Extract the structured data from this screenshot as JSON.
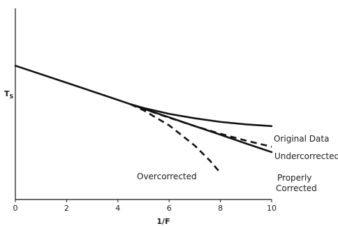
{
  "chart_data": {
    "type": "line",
    "title": "",
    "xlabel": "1/F",
    "ylabel_main": "T",
    "ylabel_sub": "S",
    "xlim": [
      0,
      10
    ],
    "ylim": [
      0,
      10
    ],
    "xticks": [
      "0",
      "2",
      "4",
      "6",
      "8",
      "10"
    ],
    "grid": false,
    "legend": "none",
    "series": [
      {
        "name": "Original Data",
        "style": "solid",
        "x": [
          0,
          2,
          4,
          4.5,
          5,
          6,
          7,
          8,
          9,
          10
        ],
        "y": [
          7.0,
          6.11,
          5.21,
          4.98,
          4.79,
          4.48,
          4.25,
          4.06,
          3.93,
          3.84
        ]
      },
      {
        "name": "Undercorrected",
        "style": "dashed",
        "x": [
          4.5,
          5,
          6,
          7,
          8,
          9,
          10
        ],
        "y": [
          4.98,
          4.74,
          4.28,
          3.84,
          3.44,
          3.08,
          2.76
        ]
      },
      {
        "name": "Properly Corrected",
        "style": "solid",
        "x": [
          4.5,
          5,
          6,
          7,
          8,
          9,
          10
        ],
        "y": [
          4.98,
          4.75,
          4.3,
          3.84,
          3.39,
          2.93,
          2.48
        ]
      },
      {
        "name": "Overcorrected",
        "style": "dashed",
        "x": [
          4.5,
          5,
          6,
          7,
          7.6,
          8.0
        ],
        "y": [
          4.98,
          4.67,
          3.88,
          2.82,
          2.02,
          1.39
        ]
      }
    ],
    "annotations": {
      "original": "Original Data",
      "under": "Undercorrected",
      "proper_line1": "Properly",
      "proper_line2": "Corrected",
      "over": "Overcorrected"
    }
  }
}
